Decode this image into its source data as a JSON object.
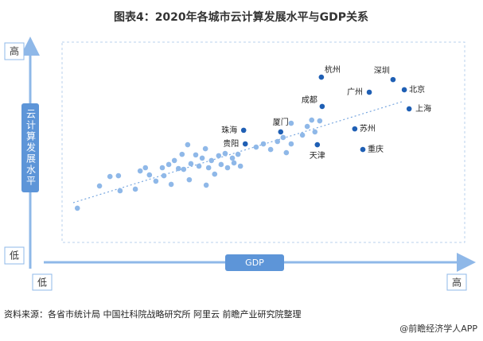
{
  "chart_data": {
    "type": "scatter",
    "title": "图表4：2020年各城市云计算发展水平与GDP关系",
    "x_label": "GDP",
    "y_label": "云计算发展水平",
    "xlim": [
      0,
      100
    ],
    "ylim": [
      0,
      100
    ],
    "xticks": [
      {
        "value": 0,
        "label": "低"
      },
      {
        "value": 100,
        "label": "高"
      }
    ],
    "yticks": [
      {
        "value": 0,
        "label": "低"
      },
      {
        "value": 100,
        "label": "高"
      }
    ],
    "series": [
      {
        "color": "#8fb8e8",
        "x": [
          3.8,
          9.3,
          11.9,
          14.0,
          14.4,
          19.4,
          20.7,
          21.7,
          18.2,
          23.3,
          24.9,
          26.5,
          25.3,
          27.9,
          28.9,
          29.8,
          31.2,
          30.2,
          32.0,
          33.2,
          34.0,
          34.8,
          35.6,
          36.4,
          37.1,
          37.9,
          38.9,
          39.5,
          40.5,
          41.1,
          42.3,
          42.7,
          43.7,
          44.3,
          35.8,
          31.6,
          27.1,
          48.2,
          50.0,
          51.8,
          53.5,
          54.9,
          56.9,
          59.7,
          56.9,
          60.9,
          62.0,
          64.0,
          62.8,
          55.7
        ],
        "y": [
          17.1,
          28.2,
          32.9,
          33.3,
          25.8,
          35.7,
          37.3,
          33.7,
          26.6,
          30.6,
          37.3,
          38.9,
          33.3,
          40.9,
          36.9,
          44.0,
          48.8,
          36.5,
          39.3,
          43.7,
          38.1,
          42.1,
          46.8,
          37.3,
          40.9,
          34.1,
          43.3,
          38.9,
          44.4,
          37.3,
          42.1,
          39.7,
          44.0,
          38.1,
          28.6,
          31.3,
          29.0,
          47.6,
          49.2,
          46.4,
          50.4,
          52.4,
          49.2,
          53.6,
          59.5,
          57.9,
          61.1,
          60.7,
          55.2,
          44.8
        ]
      },
      {
        "color": "#1f5fb4",
        "labels": [
          "杭州",
          "深圳",
          "广州",
          "北京",
          "上海",
          "成都",
          "厦门",
          "珠海",
          "贵阳",
          "苏州",
          "重庆",
          "天津"
        ],
        "x": [
          64.4,
          82.2,
          76.3,
          85.0,
          86.2,
          64.6,
          54.3,
          45.1,
          45.5,
          72.7,
          74.7,
          63.4
        ],
        "y": [
          82.5,
          81.3,
          75.0,
          76.2,
          66.7,
          67.9,
          55.2,
          56.0,
          49.2,
          56.7,
          46.4,
          48.8
        ]
      }
    ],
    "source": "资料来源：各省市统计局 中国社科院战略研究所 阿里云 前瞻产业研究院整理",
    "watermark": "@前瞻经济学人APP"
  }
}
